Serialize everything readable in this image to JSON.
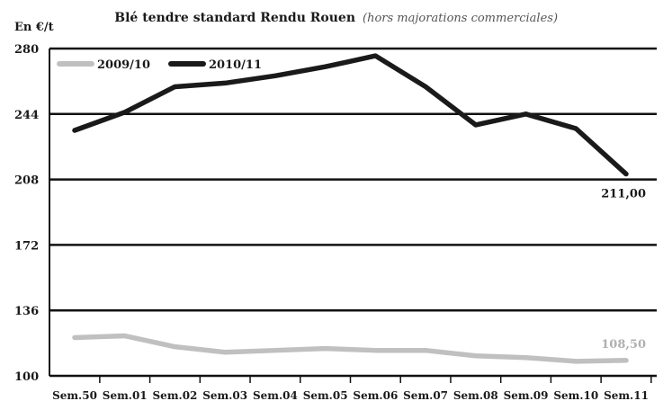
{
  "chart_data": {
    "type": "line",
    "title": "Blé tendre standard Rendu Rouen",
    "subtitle": "(hors majorations commerciales)",
    "ylabel": "En €/t",
    "xlabel": "",
    "ylim": [
      100,
      280
    ],
    "yticks": [
      100,
      136,
      172,
      208,
      244,
      280
    ],
    "grid": "horizontal",
    "legend": "top-left",
    "categories": [
      "Sem.50",
      "Sem.01",
      "Sem.02",
      "Sem.03",
      "Sem.04",
      "Sem.05",
      "Sem.06",
      "Sem.07",
      "Sem.08",
      "Sem.09",
      "Sem.10",
      "Sem.11"
    ],
    "series": [
      {
        "name": "2009/10",
        "color": "#c0c0c0",
        "values": [
          121,
          122,
          116,
          113,
          114,
          115,
          114,
          114,
          111,
          110,
          108,
          108.5
        ],
        "end_label": "108,50"
      },
      {
        "name": "2010/11",
        "color": "#1a1a1a",
        "values": [
          235,
          245,
          259,
          261,
          265,
          270,
          276,
          259,
          238,
          244,
          236,
          211
        ],
        "end_label": "211,00"
      }
    ]
  }
}
